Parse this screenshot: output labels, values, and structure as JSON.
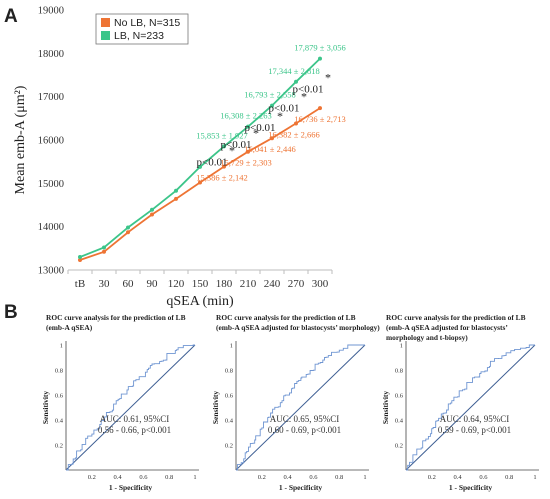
{
  "panel_labels": {
    "a": "A",
    "b": "B"
  },
  "colors": {
    "no_lb": "#ee7434",
    "lb": "#3cc58a",
    "roc": "#6f95d2",
    "ref": "#3d5e93",
    "axis": "#bdbdbd",
    "text": "#222222"
  },
  "chart_data": [
    {
      "type": "line",
      "xlabel": "qSEA (min)",
      "ylabel": "Mean emb-A (μm²)",
      "categories": [
        "tB",
        "30",
        "60",
        "90",
        "120",
        "150",
        "180",
        "210",
        "240",
        "270",
        "300"
      ],
      "ylim": [
        13000,
        19000
      ],
      "yticks": [
        "13000",
        "14000",
        "15000",
        "16000",
        "17000",
        "18000",
        "19000"
      ],
      "legend": "top-left",
      "series": [
        {
          "name": "No LB, N=315",
          "color": "#ee7434",
          "values": [
            13230,
            13420,
            13870,
            14280,
            14640,
            15020,
            15386,
            15729,
            16041,
            16382,
            16736
          ],
          "labels": [
            null,
            null,
            null,
            null,
            null,
            null,
            "15,386 ± 2,142",
            "15,729 ± 2,303",
            "16,041 ± 2,446",
            "16,382 ± 2,666",
            "16,736 ± 2,713"
          ]
        },
        {
          "name": "LB, N=233",
          "color": "#3cc58a",
          "values": [
            13300,
            13520,
            13980,
            14390,
            14830,
            15380,
            15853,
            16308,
            16793,
            17344,
            17879
          ],
          "labels": [
            null,
            null,
            null,
            null,
            null,
            null,
            "15,853 ± 1,927",
            "16,308 ± 2,263",
            "16,793 ± 2,558",
            "17,344 ± 2,818",
            "17,879 ± 3,056"
          ]
        }
      ],
      "annotations": [
        {
          "x": "180",
          "text": "p<0.01",
          "star": "*"
        },
        {
          "x": "210",
          "text": "p<0.01",
          "star": "*"
        },
        {
          "x": "240",
          "text": "p<0.01",
          "star": "*"
        },
        {
          "x": "270",
          "text": "p<0.01",
          "star": "*"
        },
        {
          "x": "300",
          "text": "p<0.01",
          "star": "*"
        }
      ]
    },
    {
      "type": "line",
      "title_lines": [
        "ROC curve analysis for the prediction of LB",
        "(emb-A qSEA)"
      ],
      "xlabel": "1 - Specificity",
      "ylabel": "Sensitivity",
      "xticks": [
        "0.2",
        "0.4",
        "0.6",
        "0.8",
        "1"
      ],
      "yticks": [
        "0.2",
        "0.4",
        "0.6",
        "0.8",
        "1"
      ],
      "xlim": [
        0,
        1
      ],
      "ylim": [
        0,
        1
      ],
      "auc_lines": [
        "AUC: 0.61, 95%CI",
        "0.56 - 0.66, p<0.001"
      ],
      "auc": 0.61
    },
    {
      "type": "line",
      "title_lines": [
        "ROC curve analysis for the prediction of LB",
        "(emb-A qSEA adjusted for blastocysts’ morphology)"
      ],
      "xlabel": "1 - Specificity",
      "ylabel": "Sensitivity",
      "xticks": [
        "0.2",
        "0.4",
        "0.6",
        "0.8",
        "1"
      ],
      "yticks": [
        "0.2",
        "0.4",
        "0.6",
        "0.8",
        "1"
      ],
      "xlim": [
        0,
        1
      ],
      "ylim": [
        0,
        1
      ],
      "auc_lines": [
        "AUC: 0.65, 95%CI",
        "0.60 - 0.69, p<0.001"
      ],
      "auc": 0.65
    },
    {
      "type": "line",
      "title_lines": [
        "ROC curve analysis for the prediction of LB",
        "(emb-A qSEA adjusted for blastocysts’",
        "morphology and t-biopsy)"
      ],
      "xlabel": "1 - Specificity",
      "ylabel": "Sensitivity",
      "xticks": [
        "0.2",
        "0.4",
        "0.6",
        "0.8",
        "1"
      ],
      "yticks": [
        "0.2",
        "0.4",
        "0.6",
        "0.8",
        "1"
      ],
      "xlim": [
        0,
        1
      ],
      "ylim": [
        0,
        1
      ],
      "auc_lines": [
        "AUC: 0.64, 95%CI",
        "0.59 - 0.69, p<0.001"
      ],
      "auc": 0.64
    }
  ]
}
